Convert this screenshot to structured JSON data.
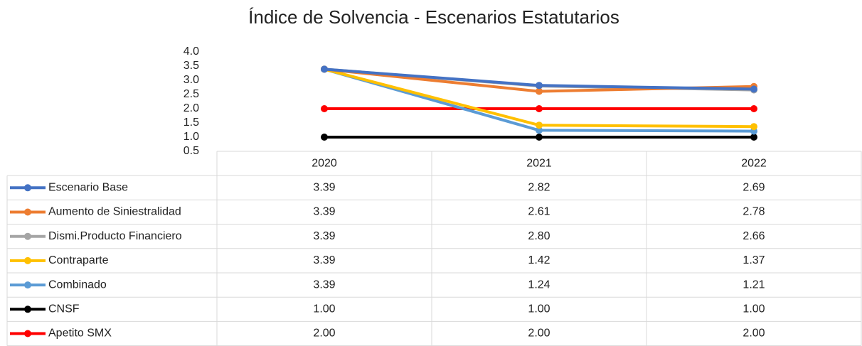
{
  "chart_data": {
    "type": "line",
    "title": "Índice de Solvencia - Escenarios Estatutarios",
    "categories": [
      "2020",
      "2021",
      "2022"
    ],
    "ylim": [
      0.5,
      4.0
    ],
    "yticks": [
      0.5,
      {
        "value": 1,
        "label": "1.0"
      },
      1.5,
      {
        "value": 2,
        "label": "2.0"
      },
      2.5,
      {
        "value": 3,
        "label": "3.0"
      },
      3.5,
      {
        "value": 4,
        "label": "4.0"
      }
    ],
    "series": [
      {
        "name": "Escenario Base",
        "color": "#4472c4",
        "values": [
          3.39,
          2.82,
          2.69
        ]
      },
      {
        "name": "Aumento de Siniestralidad",
        "color": "#ed7d31",
        "values": [
          3.39,
          2.61,
          2.78
        ]
      },
      {
        "name": "Dismi.Producto Financiero",
        "color": "#a5a5a5",
        "values": [
          3.39,
          2.8,
          2.66
        ],
        "value_labels": [
          "3.39",
          "2.80",
          "2.66"
        ]
      },
      {
        "name": "Contraparte",
        "color": "#ffc000",
        "values": [
          3.39,
          1.42,
          1.37
        ]
      },
      {
        "name": "Combinado",
        "color": "#5b9bd5",
        "values": [
          3.39,
          1.24,
          1.21
        ]
      },
      {
        "name": "CNSF",
        "color": "#000000",
        "values": [
          1,
          1,
          1
        ],
        "value_labels": [
          "1.00",
          "1.00",
          "1.00"
        ]
      },
      {
        "name": "Apetito SMX",
        "color": "#ff0000",
        "values": [
          2,
          2,
          2
        ],
        "value_labels": [
          "2.00",
          "2.00",
          "2.00"
        ]
      }
    ]
  }
}
